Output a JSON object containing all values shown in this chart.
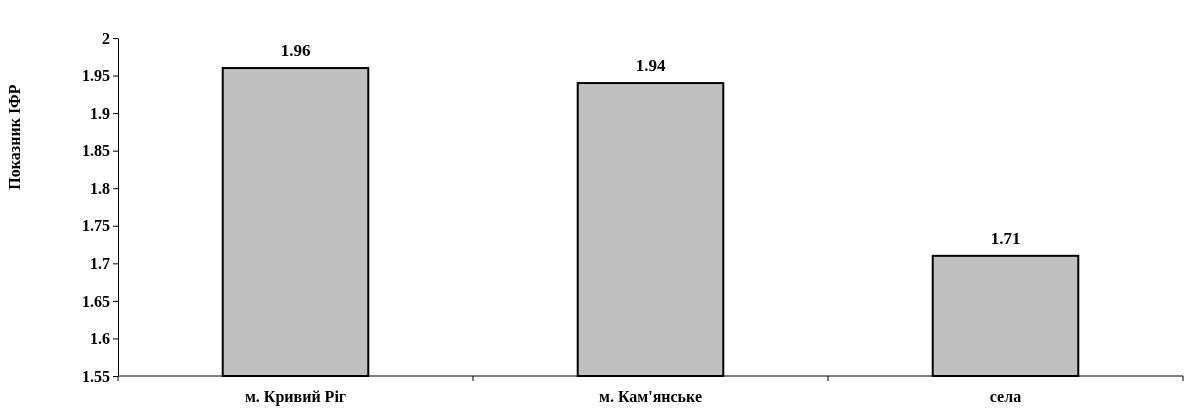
{
  "chart_data": {
    "type": "bar",
    "ylabel": "Показник ІФР",
    "categories": [
      "м. Кривий Ріг",
      "м. Кам'янське",
      "села"
    ],
    "values": [
      1.96,
      1.94,
      1.71
    ],
    "color": "#c0c0c0",
    "ylim": [
      1.55,
      2
    ],
    "yticks": [
      1.55,
      1.6,
      1.65,
      1.7,
      1.75,
      1.8,
      1.85,
      1.9,
      1.95,
      2
    ],
    "grid": false,
    "data_labels": true
  }
}
